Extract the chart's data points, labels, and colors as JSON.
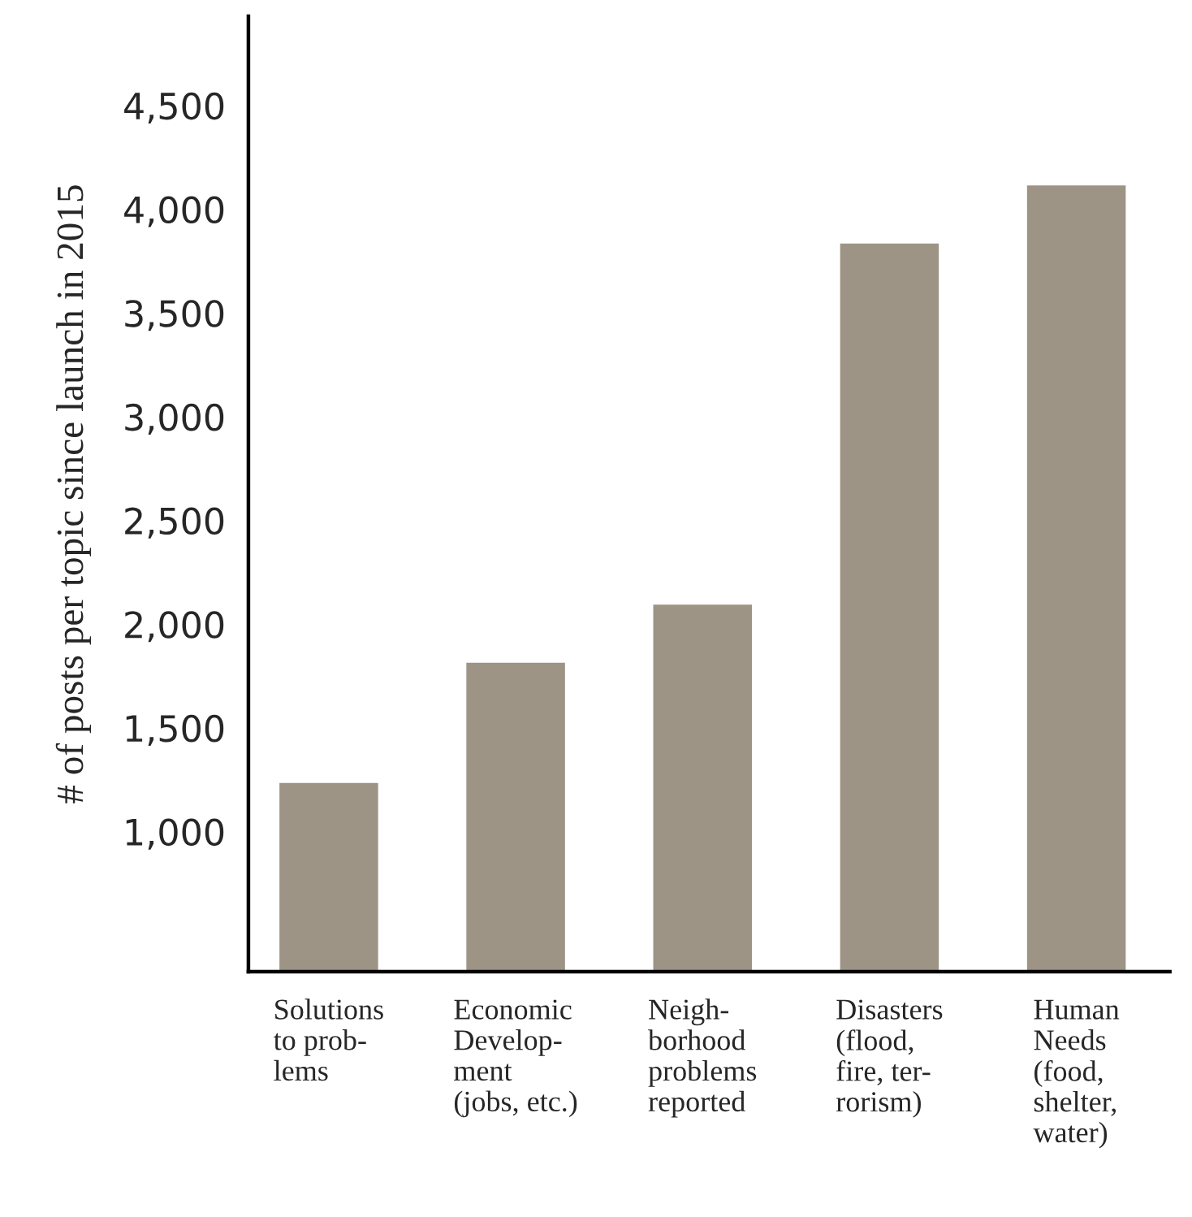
{
  "chart_data": {
    "type": "bar",
    "ylabel": "# of posts per topic since launch in 2015",
    "categories": [
      "Solutions\nto prob-\nlems",
      "Economic\nDevelop-\nment\n(jobs, etc.)",
      "Neigh-\nborhood\nproblems\nreported",
      "Disasters\n(flood,\nfire, ter-\nrorism)",
      "Human\nNeeds\n(food,\nshelter,\nwater)"
    ],
    "values": [
      1240,
      1820,
      2100,
      3840,
      4120
    ],
    "color": "#9e9486",
    "ylim": [
      325,
      4930
    ],
    "yticks": [
      {
        "value": 1000,
        "label": "1,000"
      },
      {
        "value": 1500,
        "label": "1,500"
      },
      {
        "value": 2000,
        "label": "2,000"
      },
      {
        "value": 2500,
        "label": "2,500"
      },
      {
        "value": 3000,
        "label": "3,000"
      },
      {
        "value": 3500,
        "label": "3,500"
      },
      {
        "value": 4000,
        "label": "4,000"
      },
      {
        "value": 4500,
        "label": "4,500"
      }
    ],
    "grid": false
  }
}
